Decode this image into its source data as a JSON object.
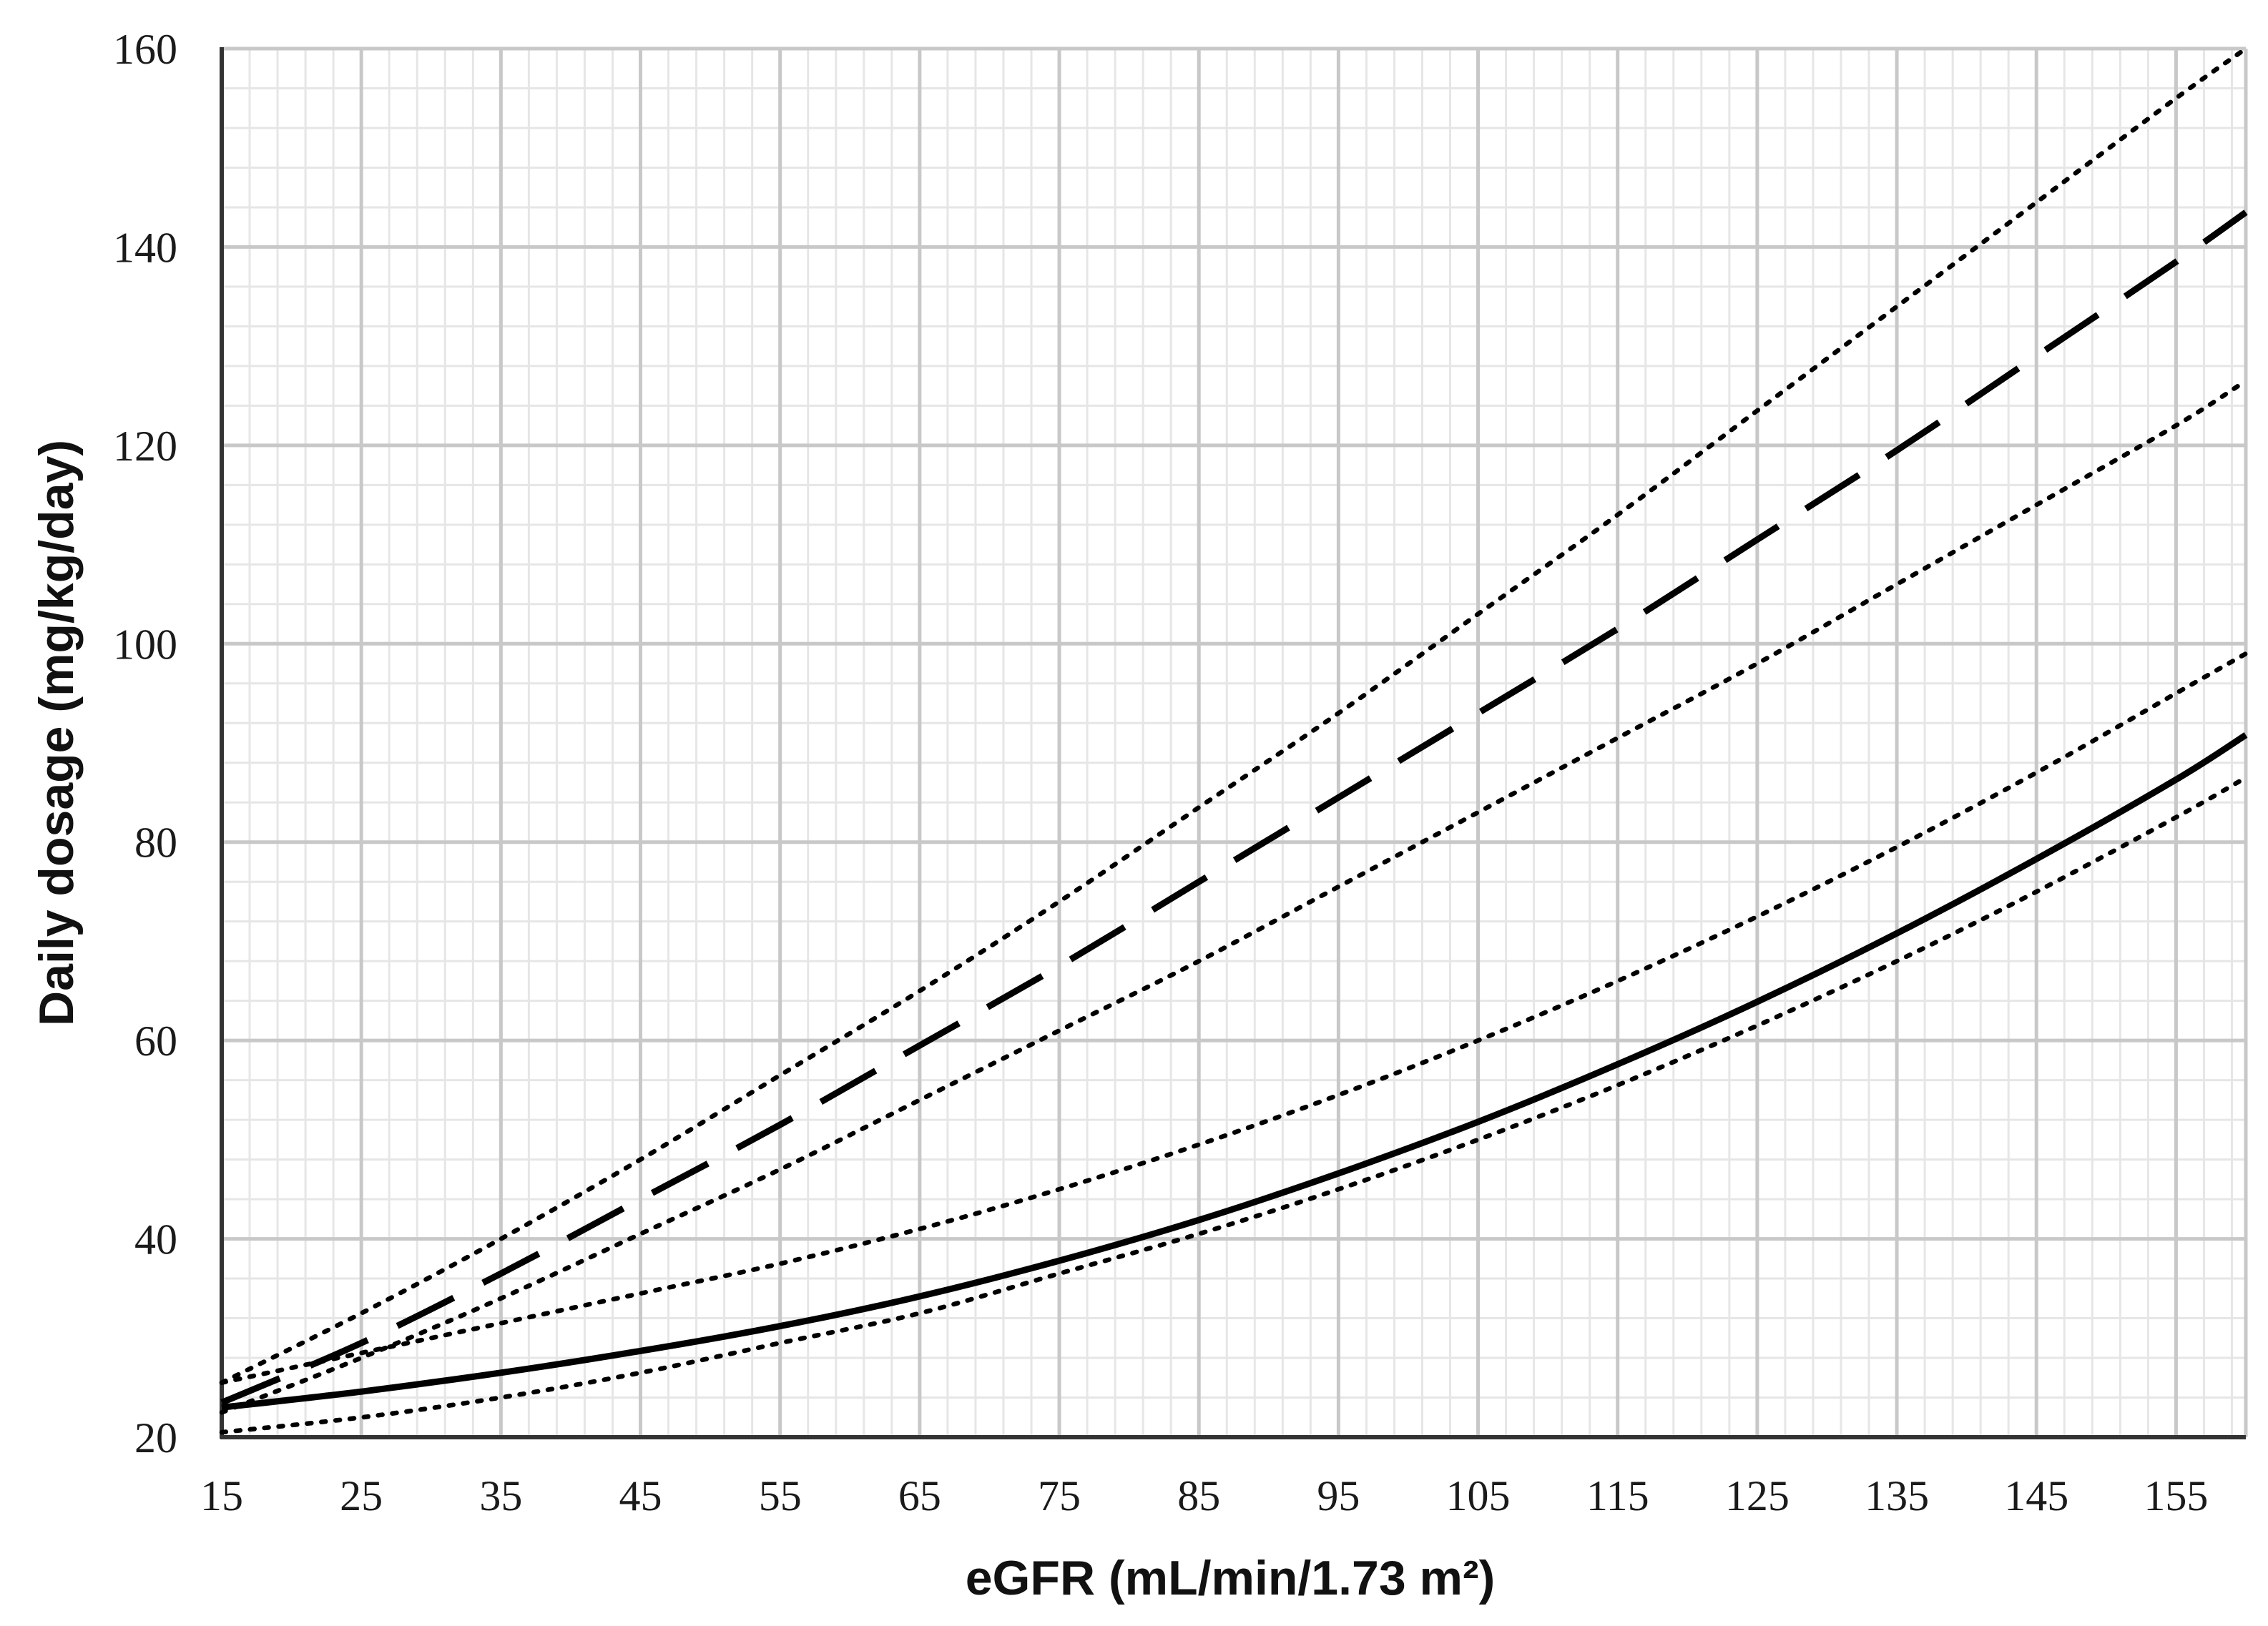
{
  "chart_data": {
    "type": "line",
    "title": "",
    "xlabel": "eGFR (mL/min/1.73 m²)",
    "ylabel": "Daily dosage (mg/kg/day)",
    "xlim": [
      15,
      160
    ],
    "ylim": [
      20,
      160
    ],
    "x_ticks": [
      15,
      25,
      35,
      45,
      55,
      65,
      75,
      85,
      95,
      105,
      115,
      125,
      135,
      145,
      155
    ],
    "y_ticks": [
      20,
      40,
      60,
      80,
      100,
      120,
      140,
      160
    ],
    "grid": true,
    "legend": "none",
    "x": [
      15,
      25,
      35,
      45,
      55,
      65,
      75,
      85,
      95,
      105,
      115,
      125,
      135,
      145,
      155,
      160
    ],
    "series": [
      {
        "style": "dashed",
        "values": [
          23.5,
          29.5,
          36.5,
          44,
          51.5,
          59.5,
          67.5,
          76,
          84.5,
          93,
          101.5,
          110.5,
          119.5,
          129,
          138.5,
          143.5
        ]
      },
      {
        "style": "dotted",
        "values": [
          25.5,
          32.5,
          40,
          48,
          56.5,
          65,
          74,
          83.5,
          93,
          103,
          113,
          123.5,
          134,
          144.5,
          155,
          160
        ]
      },
      {
        "style": "dotted",
        "values": [
          22.5,
          28,
          34,
          40.5,
          47,
          54,
          61,
          68,
          75.5,
          83,
          90.5,
          98,
          106,
          114,
          122,
          126.5
        ]
      },
      {
        "style": "solid",
        "values": [
          23,
          24.6,
          26.5,
          28.7,
          31.2,
          34.2,
          37.8,
          41.9,
          46.6,
          51.8,
          57.6,
          63.9,
          70.8,
          78.3,
          86.3,
          90.8
        ]
      },
      {
        "style": "dotted",
        "values": [
          25.5,
          28.5,
          31.5,
          34.5,
          37.5,
          41,
          45,
          49.5,
          54.5,
          60,
          66,
          72.5,
          79.5,
          87,
          95,
          99
        ]
      },
      {
        "style": "dotted",
        "values": [
          20.5,
          22,
          24,
          26.5,
          29.5,
          32.5,
          36.5,
          40.5,
          45,
          50,
          55.5,
          61.5,
          68,
          75,
          82.5,
          86.5
        ]
      }
    ],
    "colors": {
      "line": "#000000",
      "major_grid": "#c8c8c8",
      "minor_grid": "#e6e6e6",
      "axis": "#333333"
    }
  }
}
